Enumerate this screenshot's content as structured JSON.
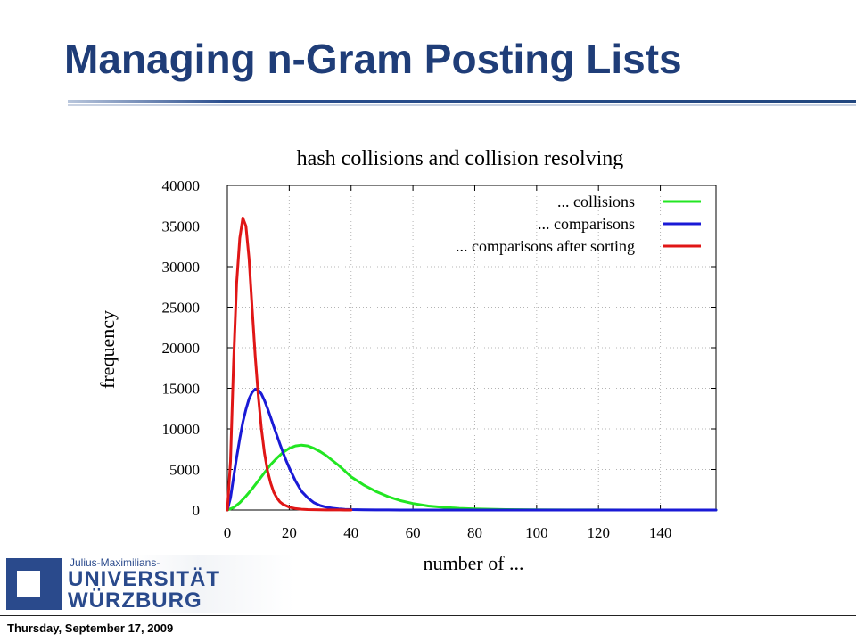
{
  "slide": {
    "title": "Managing n-Gram Posting Lists",
    "footer_date": "Thursday, September 17, 2009"
  },
  "logo": {
    "small_text": "Julius-Maximilians-",
    "line1": "UNIVERSITÄT",
    "line2": "WÜRZBURG"
  },
  "colors": {
    "title": "#1f3d78",
    "collisions": "#22e622",
    "comparisons": "#1a1ad6",
    "comparisons_after_sorting": "#e01616"
  },
  "chart_data": {
    "type": "line",
    "title": "hash collisions and collision resolving",
    "xlabel": "number of ...",
    "ylabel": "frequency",
    "xlim": [
      0,
      158
    ],
    "ylim": [
      0,
      40000
    ],
    "xticks": [
      0,
      20,
      40,
      60,
      80,
      100,
      120,
      140
    ],
    "yticks": [
      0,
      5000,
      10000,
      15000,
      20000,
      25000,
      30000,
      35000,
      40000
    ],
    "grid": true,
    "legend_position": "top-right",
    "series": [
      {
        "name": "... collisions",
        "color": "#22e622",
        "x": [
          0,
          2,
          4,
          6,
          8,
          10,
          12,
          14,
          16,
          18,
          20,
          22,
          24,
          26,
          28,
          30,
          32,
          34,
          36,
          38,
          40,
          44,
          48,
          52,
          56,
          60,
          65,
          70,
          75,
          80,
          90,
          100,
          110,
          120,
          130,
          140,
          150,
          158
        ],
        "values": [
          0,
          300,
          900,
          1700,
          2600,
          3600,
          4600,
          5600,
          6400,
          7100,
          7600,
          7900,
          8000,
          7900,
          7600,
          7200,
          6700,
          6100,
          5500,
          4800,
          4100,
          3100,
          2300,
          1650,
          1150,
          800,
          500,
          330,
          210,
          140,
          60,
          30,
          15,
          8,
          5,
          3,
          2,
          1
        ]
      },
      {
        "name": "... comparisons",
        "color": "#1a1ad6",
        "x": [
          0,
          1,
          2,
          3,
          4,
          5,
          6,
          7,
          8,
          9,
          10,
          11,
          12,
          13,
          14,
          15,
          16,
          17,
          18,
          19,
          20,
          22,
          24,
          26,
          28,
          30,
          32,
          34,
          36,
          38,
          40,
          44,
          48,
          52,
          56,
          60,
          70,
          80,
          90,
          100,
          120,
          140,
          158
        ],
        "values": [
          0,
          1500,
          4000,
          6500,
          8800,
          10800,
          12400,
          13700,
          14500,
          14900,
          14800,
          14300,
          13500,
          12500,
          11400,
          10300,
          9200,
          8100,
          7100,
          6100,
          5200,
          3600,
          2300,
          1500,
          900,
          550,
          350,
          220,
          140,
          90,
          60,
          30,
          15,
          8,
          4,
          2,
          1,
          0,
          0,
          0,
          0,
          0,
          0
        ]
      },
      {
        "name": "... comparisons after sorting",
        "color": "#e01616",
        "x": [
          0,
          1,
          2,
          3,
          4,
          5,
          6,
          7,
          8,
          9,
          10,
          11,
          12,
          13,
          14,
          15,
          16,
          17,
          18,
          20,
          22,
          24,
          26,
          28,
          30,
          32,
          34,
          36,
          38,
          40
        ],
        "values": [
          0,
          6000,
          18000,
          28000,
          33500,
          36000,
          35000,
          31000,
          25000,
          19000,
          14000,
          10000,
          7000,
          4800,
          3300,
          2200,
          1500,
          1000,
          700,
          350,
          180,
          100,
          60,
          40,
          25,
          15,
          10,
          6,
          4,
          2
        ]
      }
    ]
  }
}
